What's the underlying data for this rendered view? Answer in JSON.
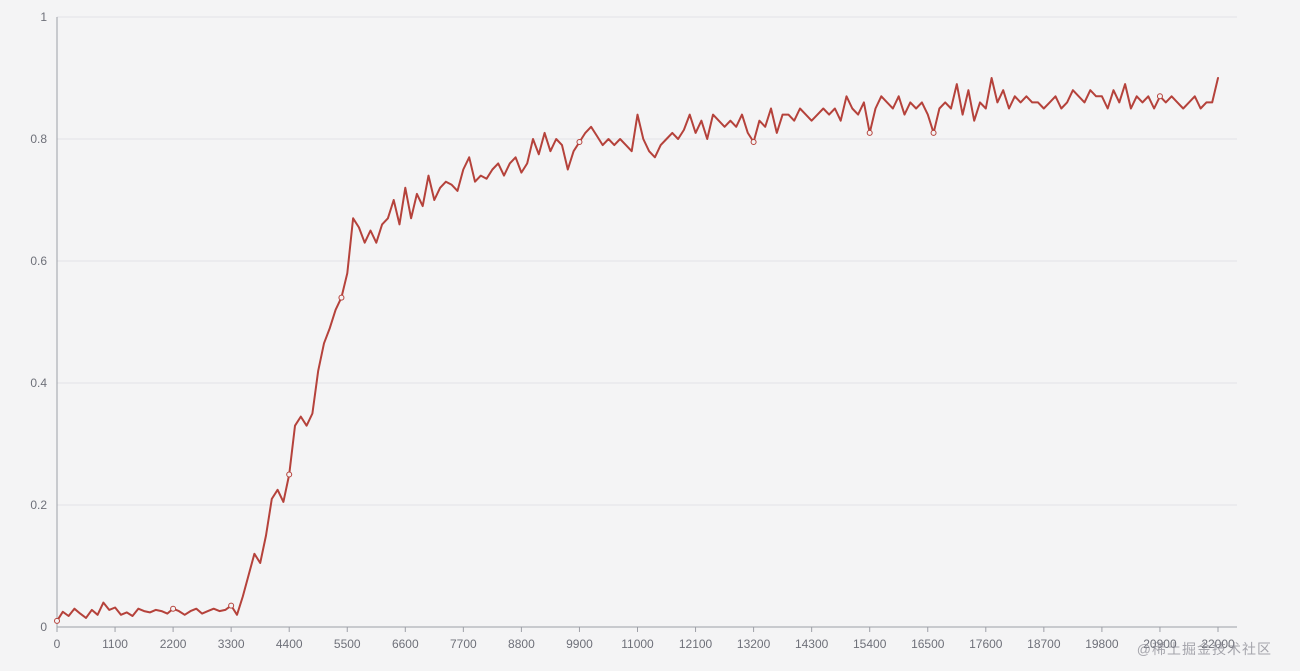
{
  "watermark": {
    "text": "@稀土掘金技术社区"
  },
  "colors": {
    "background": "#f4f4f5",
    "line": "#b5423b",
    "grid": "#e2e2e6",
    "axis": "#9d9fa6",
    "label": "#6e7079",
    "watermark": "#8a8a93"
  },
  "chart_data": {
    "type": "line",
    "title": "",
    "xlabel": "",
    "ylabel": "",
    "legend": "none",
    "grid": true,
    "x_start": 0,
    "x_step": 110,
    "x_ticks": [
      0,
      1100,
      2200,
      3300,
      4400,
      5500,
      6600,
      7700,
      8800,
      9900,
      11000,
      12100,
      13200,
      14300,
      15400,
      16500,
      17600,
      18700,
      19800,
      20900,
      22000
    ],
    "y_ticks": [
      0,
      0.2,
      0.4,
      0.6,
      0.8,
      1
    ],
    "xlim": [
      0,
      22350
    ],
    "ylim": [
      0,
      1
    ],
    "marker_indices": [
      0,
      20,
      30,
      40,
      49,
      90,
      120,
      140,
      151,
      190
    ],
    "values": [
      0.01,
      0.025,
      0.018,
      0.03,
      0.022,
      0.015,
      0.028,
      0.02,
      0.04,
      0.028,
      0.032,
      0.02,
      0.024,
      0.018,
      0.03,
      0.026,
      0.024,
      0.028,
      0.026,
      0.022,
      0.03,
      0.026,
      0.02,
      0.026,
      0.03,
      0.022,
      0.026,
      0.03,
      0.026,
      0.028,
      0.035,
      0.02,
      0.05,
      0.085,
      0.12,
      0.105,
      0.15,
      0.21,
      0.225,
      0.205,
      0.25,
      0.33,
      0.345,
      0.33,
      0.35,
      0.42,
      0.465,
      0.49,
      0.52,
      0.54,
      0.58,
      0.67,
      0.655,
      0.63,
      0.65,
      0.63,
      0.66,
      0.67,
      0.7,
      0.66,
      0.72,
      0.67,
      0.71,
      0.69,
      0.74,
      0.7,
      0.72,
      0.73,
      0.725,
      0.715,
      0.75,
      0.77,
      0.73,
      0.74,
      0.735,
      0.75,
      0.76,
      0.74,
      0.76,
      0.77,
      0.745,
      0.76,
      0.8,
      0.775,
      0.81,
      0.78,
      0.8,
      0.79,
      0.75,
      0.78,
      0.795,
      0.81,
      0.82,
      0.805,
      0.79,
      0.8,
      0.79,
      0.8,
      0.79,
      0.78,
      0.84,
      0.8,
      0.78,
      0.77,
      0.79,
      0.8,
      0.81,
      0.8,
      0.815,
      0.84,
      0.81,
      0.83,
      0.8,
      0.84,
      0.83,
      0.82,
      0.83,
      0.82,
      0.84,
      0.81,
      0.795,
      0.83,
      0.82,
      0.85,
      0.81,
      0.84,
      0.84,
      0.83,
      0.85,
      0.84,
      0.83,
      0.84,
      0.85,
      0.84,
      0.85,
      0.83,
      0.87,
      0.85,
      0.84,
      0.86,
      0.81,
      0.85,
      0.87,
      0.86,
      0.85,
      0.87,
      0.84,
      0.86,
      0.85,
      0.86,
      0.84,
      0.81,
      0.85,
      0.86,
      0.85,
      0.89,
      0.84,
      0.88,
      0.83,
      0.86,
      0.85,
      0.9,
      0.86,
      0.88,
      0.85,
      0.87,
      0.86,
      0.87,
      0.86,
      0.86,
      0.85,
      0.86,
      0.87,
      0.85,
      0.86,
      0.88,
      0.87,
      0.86,
      0.88,
      0.87,
      0.87,
      0.85,
      0.88,
      0.86,
      0.89,
      0.85,
      0.87,
      0.86,
      0.87,
      0.85,
      0.87,
      0.86,
      0.87,
      0.86,
      0.85,
      0.86,
      0.87,
      0.85,
      0.86,
      0.86,
      0.9
    ]
  }
}
